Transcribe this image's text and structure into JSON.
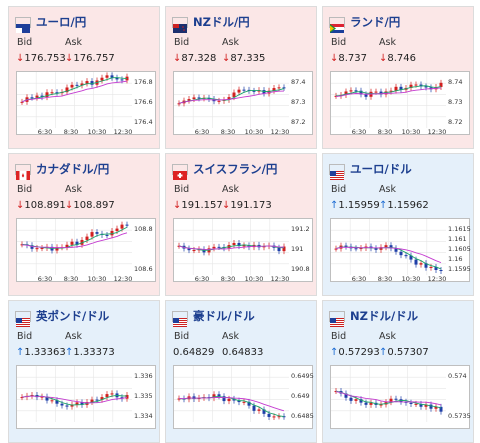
{
  "grid": {
    "cards": [
      {
        "pair": "ユーロ/円",
        "flag": "eu-flag",
        "trend": "down",
        "bid_label": "Bid",
        "ask_label": "Ask",
        "bid": "176.753",
        "ask": "176.757",
        "yticks": [
          "176.8",
          "176.6",
          "176.4"
        ],
        "xticks": [
          "6:30",
          "8:30",
          "10:30",
          "12:30"
        ]
      },
      {
        "pair": "NZドル/円",
        "flag": "nz-flag",
        "trend": "down",
        "bid_label": "Bid",
        "ask_label": "Ask",
        "bid": "87.328",
        "ask": "87.335",
        "yticks": [
          "87.4",
          "87.3",
          "87.2"
        ],
        "xticks": [
          "6:30",
          "8:30",
          "10:30",
          "12:30"
        ]
      },
      {
        "pair": "ランド/円",
        "flag": "za-flag",
        "trend": "down",
        "bid_label": "Bid",
        "ask_label": "Ask",
        "bid": "8.737",
        "ask": "8.746",
        "yticks": [
          "8.74",
          "8.73",
          "8.72"
        ],
        "xticks": [
          "6:30",
          "8:30",
          "10:30",
          "12:30"
        ]
      },
      {
        "pair": "カナダドル/円",
        "flag": "ca-flag",
        "trend": "down",
        "bid_label": "Bid",
        "ask_label": "Ask",
        "bid": "108.891",
        "ask": "108.897",
        "yticks": [
          "108.8",
          "108.6"
        ],
        "xticks": [
          "6:30",
          "8:30",
          "10:30",
          "12:30"
        ]
      },
      {
        "pair": "スイスフラン/円",
        "flag": "ch-flag",
        "trend": "down",
        "bid_label": "Bid",
        "ask_label": "Ask",
        "bid": "191.157",
        "ask": "191.173",
        "yticks": [
          "191.2",
          "191",
          "190.8"
        ],
        "xticks": [
          "6:30",
          "8:30",
          "10:30",
          "12:30"
        ]
      },
      {
        "pair": "ユーロ/ドル",
        "flag": "eu-us-flag",
        "trend": "up",
        "bid_label": "Bid",
        "ask_label": "Ask",
        "bid": "1.15959",
        "ask": "1.15962",
        "yticks": [
          "1.1615",
          "1.161",
          "1.1605",
          "1.16",
          "1.1595"
        ],
        "xticks": [
          "6:30",
          "8:30",
          "10:30",
          "12:30"
        ]
      },
      {
        "pair": "英ポンド/ドル",
        "flag": "gb-us-flag",
        "trend": "up",
        "bid_label": "Bid",
        "ask_label": "Ask",
        "bid": "1.33363",
        "ask": "1.33373",
        "yticks": [
          "1.336",
          "1.335",
          "1.334"
        ],
        "xticks": []
      },
      {
        "pair": "豪ドル/ドル",
        "flag": "au-us-flag",
        "trend": "none",
        "bid_label": "Bid",
        "ask_label": "Ask",
        "bid": "0.64829",
        "ask": "0.64833",
        "yticks": [
          "0.6495",
          "0.649",
          "0.6485"
        ],
        "xticks": []
      },
      {
        "pair": "NZドル/ドル",
        "flag": "nz-us-flag",
        "trend": "up",
        "bid_label": "Bid",
        "ask_label": "Ask",
        "bid": "0.57293",
        "ask": "0.57307",
        "yticks": [
          "0.574",
          "0.5735"
        ],
        "xticks": []
      }
    ],
    "colors": {
      "down": "#d21f1f",
      "up": "#1a6ad3",
      "candle_up": "#d21f1f",
      "candle_down": "#1f3fa8",
      "ma_short": "#1aa36a",
      "ma_long": "#c43bd0"
    }
  }
}
